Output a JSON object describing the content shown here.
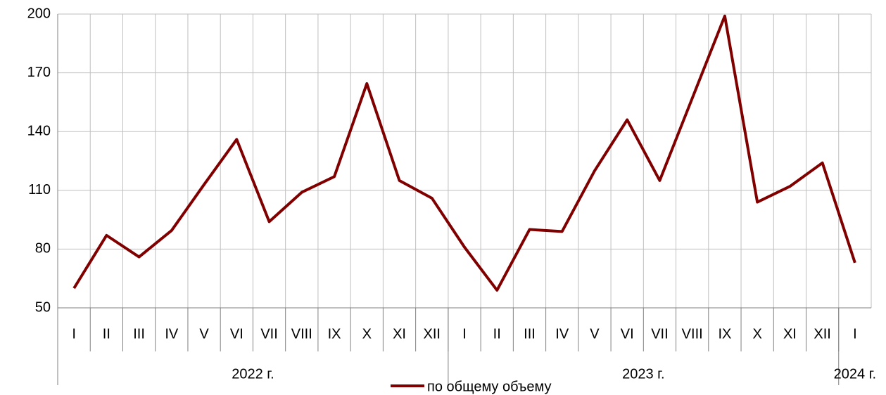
{
  "chart_data": {
    "type": "line",
    "categories": [
      "I",
      "II",
      "III",
      "IV",
      "V",
      "VI",
      "VII",
      "VIII",
      "IX",
      "X",
      "XI",
      "XII",
      "I",
      "II",
      "III",
      "IV",
      "V",
      "VI",
      "VII",
      "VIII",
      "IX",
      "X",
      "XI",
      "XII",
      "I"
    ],
    "x_groups": [
      {
        "label": "2022 г.",
        "count": 12
      },
      {
        "label": "2023 г.",
        "count": 12
      },
      {
        "label": "2024 г.",
        "count": 1
      }
    ],
    "series": [
      {
        "name": "по общему объему",
        "color": "#800000",
        "values": [
          60,
          87,
          76,
          89.5,
          113,
          136,
          94,
          109,
          117,
          164.5,
          115,
          106,
          81,
          59,
          90,
          89,
          120,
          146,
          115,
          157,
          199,
          104,
          112,
          124,
          73
        ]
      }
    ],
    "ylim": [
      50,
      200
    ],
    "yticks": [
      50,
      80,
      110,
      140,
      170,
      200
    ],
    "grid": true,
    "legend": "bottom"
  }
}
